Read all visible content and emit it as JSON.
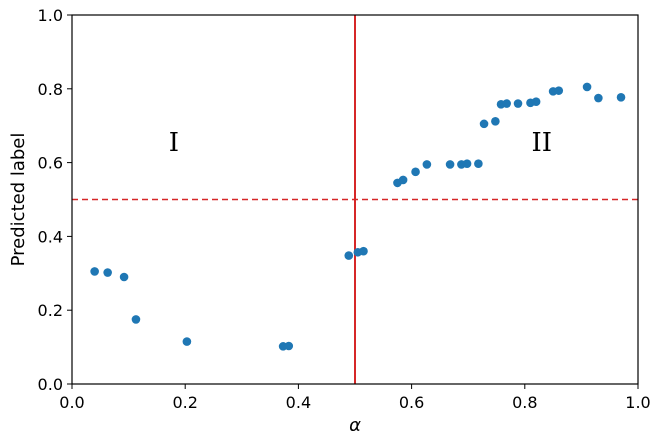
{
  "chart_data": {
    "type": "scatter",
    "xlabel": "α",
    "ylabel": "Predicted label",
    "xlim": [
      0.0,
      1.0
    ],
    "ylim": [
      0.0,
      1.0
    ],
    "xticks": [
      "0.0",
      "0.2",
      "0.4",
      "0.6",
      "0.8",
      "1.0"
    ],
    "yticks": [
      "0.0",
      "0.2",
      "0.4",
      "0.6",
      "0.8",
      "1.0"
    ],
    "grid": false,
    "point_color": "#1f77b4",
    "vertical_line": {
      "x": 0.5,
      "color": "#d62728",
      "style": "solid"
    },
    "horizontal_line": {
      "y": 0.5,
      "color": "#d62728",
      "style": "dashed"
    },
    "annotations": [
      {
        "text": "I",
        "x": 0.18,
        "y": 0.65
      },
      {
        "text": "II",
        "x": 0.83,
        "y": 0.65
      }
    ],
    "points": [
      {
        "x": 0.04,
        "y": 0.305
      },
      {
        "x": 0.063,
        "y": 0.302
      },
      {
        "x": 0.092,
        "y": 0.29
      },
      {
        "x": 0.113,
        "y": 0.175
      },
      {
        "x": 0.203,
        "y": 0.115
      },
      {
        "x": 0.373,
        "y": 0.102
      },
      {
        "x": 0.383,
        "y": 0.103
      },
      {
        "x": 0.489,
        "y": 0.348
      },
      {
        "x": 0.505,
        "y": 0.357
      },
      {
        "x": 0.515,
        "y": 0.36
      },
      {
        "x": 0.575,
        "y": 0.545
      },
      {
        "x": 0.585,
        "y": 0.553
      },
      {
        "x": 0.607,
        "y": 0.575
      },
      {
        "x": 0.627,
        "y": 0.595
      },
      {
        "x": 0.668,
        "y": 0.595
      },
      {
        "x": 0.688,
        "y": 0.595
      },
      {
        "x": 0.698,
        "y": 0.597
      },
      {
        "x": 0.718,
        "y": 0.597
      },
      {
        "x": 0.728,
        "y": 0.705
      },
      {
        "x": 0.748,
        "y": 0.712
      },
      {
        "x": 0.758,
        "y": 0.758
      },
      {
        "x": 0.768,
        "y": 0.76
      },
      {
        "x": 0.788,
        "y": 0.76
      },
      {
        "x": 0.81,
        "y": 0.762
      },
      {
        "x": 0.82,
        "y": 0.765
      },
      {
        "x": 0.85,
        "y": 0.793
      },
      {
        "x": 0.86,
        "y": 0.795
      },
      {
        "x": 0.91,
        "y": 0.805
      },
      {
        "x": 0.93,
        "y": 0.775
      },
      {
        "x": 0.97,
        "y": 0.777
      }
    ]
  }
}
